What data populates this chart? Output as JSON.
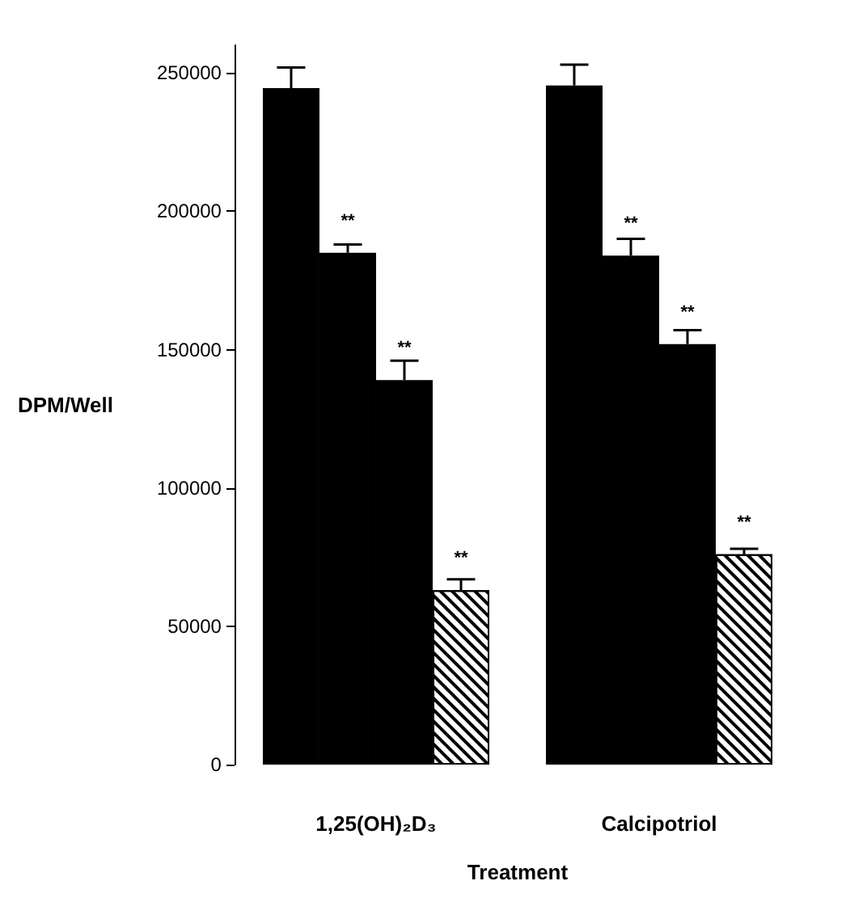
{
  "chart_data": {
    "type": "bar",
    "ylabel": "DPM/Well",
    "xlabel": "Treatment",
    "categories": [
      "1,25(OH)₂D₃",
      "Calcipotriol"
    ],
    "series": [
      {
        "color": "#000000",
        "values": [
          244500,
          245500
        ],
        "errors": [
          [
            244500,
            252000
          ],
          [
            245500,
            253000
          ]
        ]
      },
      {
        "color": "#000000",
        "values": [
          185000,
          184000
        ],
        "errors": [
          [
            185000,
            188000
          ],
          [
            184000,
            190000
          ]
        ],
        "value_labels": [
          "**",
          "**"
        ]
      },
      {
        "color": "#000000",
        "values": [
          139000,
          152000
        ],
        "errors": [
          [
            139000,
            146000
          ],
          [
            152000,
            157000
          ]
        ],
        "value_labels": [
          "**",
          "**"
        ]
      },
      {
        "color": "#ffffff",
        "values": [
          63000,
          76000
        ],
        "errors": [
          [
            63000,
            67000
          ],
          [
            76000,
            78000
          ]
        ],
        "value_labels": [
          "**",
          "**"
        ]
      }
    ],
    "ylim": [
      0,
      260000
    ],
    "yticks": [
      0,
      50000,
      100000,
      150000,
      200000,
      250000
    ],
    "grid": false
  }
}
